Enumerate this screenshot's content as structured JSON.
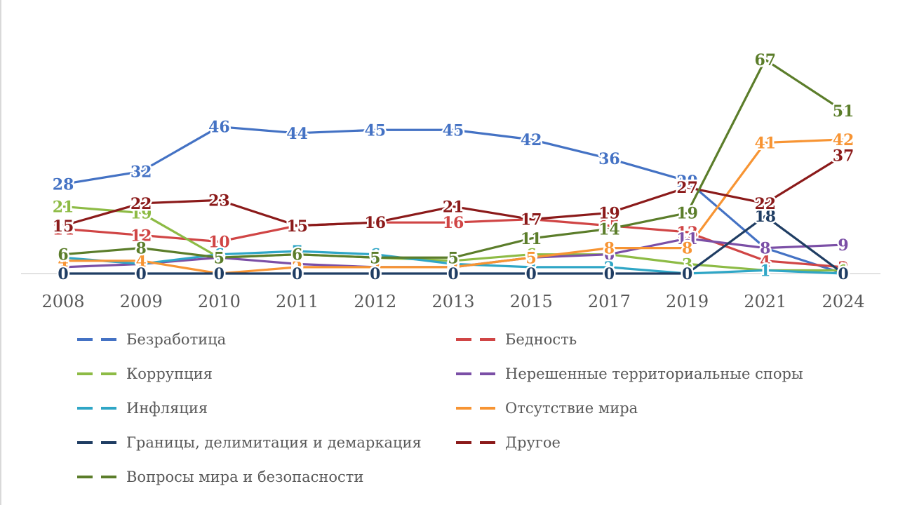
{
  "chart_data": {
    "type": "line",
    "x": [
      "2008",
      "2009",
      "2010",
      "2011",
      "2012",
      "2013",
      "2015",
      "2017",
      "2019",
      "2021",
      "2024"
    ],
    "ylim": [
      0,
      70
    ],
    "grid": false,
    "legend_position": "bottom",
    "series": [
      {
        "name": "Безработица",
        "color": "#4472C4",
        "values": [
          28,
          32,
          46,
          44,
          45,
          45,
          42,
          36,
          29,
          8,
          0
        ]
      },
      {
        "name": "Бедность",
        "color": "#D04545",
        "values": [
          14,
          12,
          10,
          15,
          16,
          16,
          17,
          15,
          13,
          4,
          2
        ]
      },
      {
        "name": "Коррупция",
        "color": "#8DBB45",
        "values": [
          21,
          19,
          5,
          6,
          5,
          4,
          6,
          6,
          3,
          1,
          1
        ]
      },
      {
        "name": "Нерешенные территориальные споры",
        "color": "#7B4FA6",
        "values": [
          2,
          3,
          5,
          3,
          2,
          2,
          5,
          6,
          11,
          8,
          9
        ]
      },
      {
        "name": "Инфляция",
        "color": "#2FA6C6",
        "values": [
          5,
          3,
          6,
          7,
          6,
          3,
          2,
          2,
          0,
          1,
          0
        ]
      },
      {
        "name": "Отсутствие мира",
        "color": "#F79433",
        "values": [
          4,
          4,
          0,
          2,
          2,
          2,
          5,
          8,
          8,
          41,
          42
        ]
      },
      {
        "name": "Границы, делимитация и демаркация",
        "color": "#1F3D63",
        "values": [
          0,
          0,
          0,
          0,
          0,
          0,
          0,
          0,
          0,
          18,
          0
        ]
      },
      {
        "name": "Другое",
        "color": "#8B1A1A",
        "values": [
          15,
          22,
          23,
          15,
          16,
          21,
          17,
          19,
          27,
          22,
          37
        ]
      },
      {
        "name": "Вопросы мира и безопасности",
        "color": "#5B7D2A",
        "values": [
          6,
          8,
          5,
          6,
          5,
          5,
          11,
          14,
          19,
          67,
          51
        ]
      }
    ]
  }
}
